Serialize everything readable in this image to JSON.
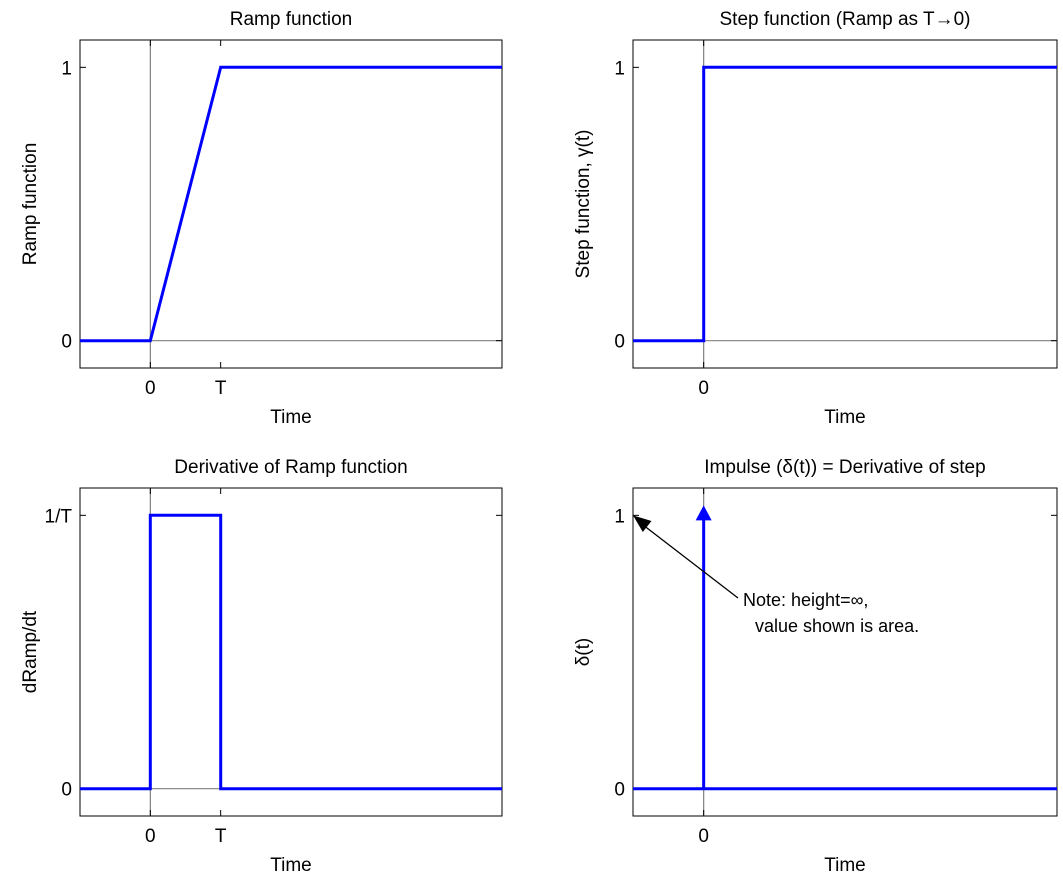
{
  "chart_data": [
    {
      "type": "line",
      "title": "Ramp function",
      "xlabel": "Time",
      "ylabel": "Ramp function",
      "x_ticks": [
        {
          "value": 0,
          "label": "0"
        },
        {
          "value": 1,
          "label": "T"
        }
      ],
      "y_ticks": [
        {
          "value": 0,
          "label": "0"
        },
        {
          "value": 1,
          "label": "1"
        }
      ],
      "xlim": [
        -1,
        5
      ],
      "ylim": [
        -0.1,
        1.1
      ],
      "vertical_reference_x": 0,
      "series": [
        {
          "x": [
            -1,
            0,
            1,
            5
          ],
          "y": [
            0,
            0,
            1,
            1
          ]
        }
      ]
    },
    {
      "type": "line",
      "title": "Step function (Ramp as T→0)",
      "xlabel": "Time",
      "ylabel": "Step function, γ(t)",
      "x_ticks": [
        {
          "value": 0,
          "label": "0"
        }
      ],
      "y_ticks": [
        {
          "value": 0,
          "label": "0"
        },
        {
          "value": 1,
          "label": "1"
        }
      ],
      "xlim": [
        -1,
        5
      ],
      "ylim": [
        -0.1,
        1.1
      ],
      "vertical_reference_x": 0,
      "series": [
        {
          "x": [
            -1,
            0,
            0,
            5
          ],
          "y": [
            0,
            0,
            1,
            1
          ]
        }
      ]
    },
    {
      "type": "line",
      "title": "Derivative of Ramp function",
      "xlabel": "Time",
      "ylabel": "dRamp/dt",
      "x_ticks": [
        {
          "value": 0,
          "label": "0"
        },
        {
          "value": 1,
          "label": "T"
        }
      ],
      "y_ticks": [
        {
          "value": 0,
          "label": "0"
        },
        {
          "value": 1,
          "label": "1/T"
        }
      ],
      "xlim": [
        -1,
        5
      ],
      "ylim": [
        -0.1,
        1.1
      ],
      "vertical_reference_x": 0,
      "series": [
        {
          "x": [
            -1,
            0,
            0,
            1,
            1,
            5
          ],
          "y": [
            0,
            0,
            1,
            1,
            0,
            0
          ]
        }
      ]
    },
    {
      "type": "line",
      "title": "Impulse (δ(t)) = Derivative of step",
      "xlabel": "Time",
      "ylabel": "δ(t)",
      "x_ticks": [
        {
          "value": 0,
          "label": "0"
        }
      ],
      "y_ticks": [
        {
          "value": 0,
          "label": "0"
        },
        {
          "value": 1,
          "label": "1"
        }
      ],
      "xlim": [
        -1,
        5
      ],
      "ylim": [
        -0.1,
        1.1
      ],
      "vertical_reference_x": 0,
      "series": [
        {
          "x": [
            -1,
            5
          ],
          "y": [
            0,
            0
          ]
        }
      ],
      "impulse": {
        "x": 0,
        "y": 1,
        "marker": "triangle-up"
      },
      "annotation": {
        "lines": [
          "Note: height=∞,",
          "value shown is area."
        ],
        "arrow_to": {
          "x": -1,
          "y": 1
        }
      }
    }
  ]
}
